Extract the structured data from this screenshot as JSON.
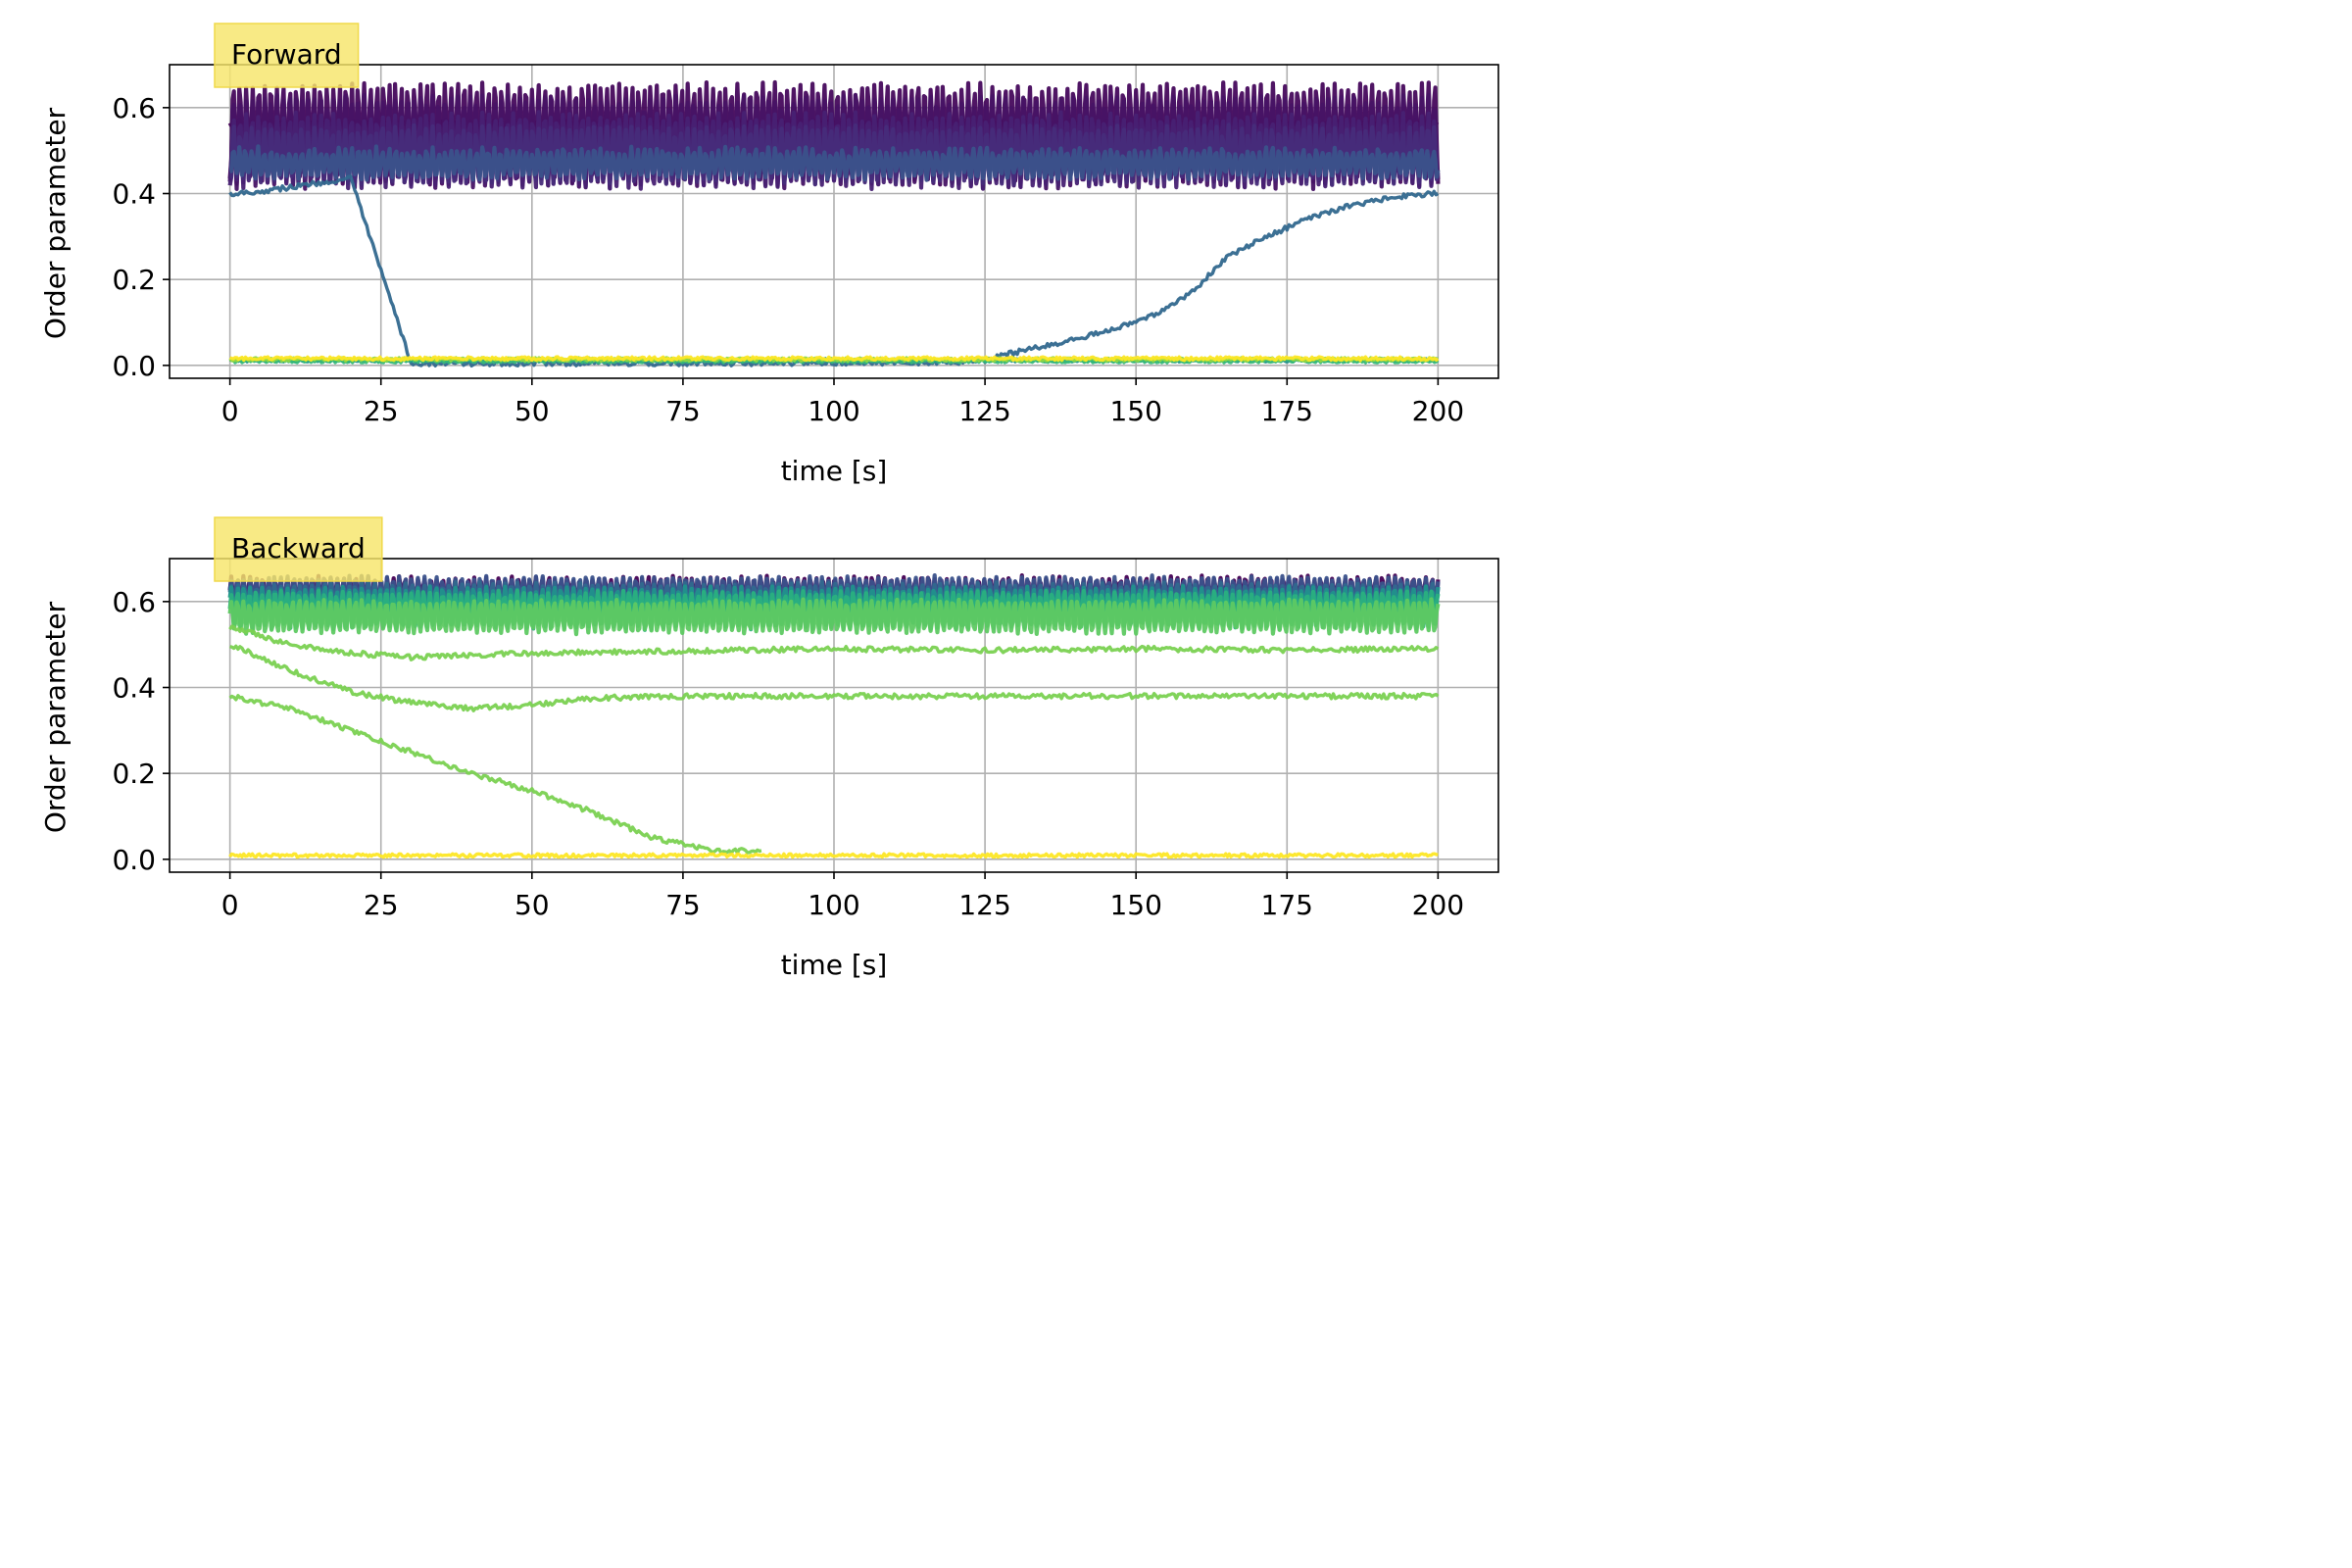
{
  "chart_data": [
    {
      "type": "line",
      "panel_label": "Forward",
      "xlabel": "time [s]",
      "ylabel": "Order parameter",
      "xlim": [
        -10,
        210
      ],
      "ylim": [
        -0.03,
        0.7
      ],
      "xticks": [
        0,
        25,
        50,
        75,
        100,
        125,
        150,
        175,
        200
      ],
      "xtick_labels": [
        "0",
        "25",
        "50",
        "75",
        "100",
        "125",
        "150",
        "175",
        "200"
      ],
      "yticks": [
        0.0,
        0.2,
        0.4,
        0.6
      ],
      "ytick_labels": [
        "0.0",
        "0.2",
        "0.4",
        "0.6"
      ],
      "grid": true,
      "colormap": "viridis",
      "series": [
        {
          "color": "#440154",
          "kind": "oscillating",
          "mean": 0.565,
          "amp": 0.005,
          "noise": 0.003,
          "x": [
            0,
            200
          ]
        },
        {
          "color": "#46085c",
          "kind": "oscillating",
          "mean": 0.54,
          "amp": 0.11,
          "noise": 0.01,
          "x": [
            0,
            200
          ]
        },
        {
          "color": "#471365",
          "kind": "oscillating",
          "mean": 0.52,
          "amp": 0.1,
          "noise": 0.01,
          "x": [
            0,
            200
          ]
        },
        {
          "color": "#482173",
          "kind": "oscillating",
          "mean": 0.5,
          "amp": 0.08,
          "noise": 0.01,
          "x": [
            0,
            200
          ]
        },
        {
          "color": "#472c7a",
          "kind": "oscillating",
          "mean": 0.49,
          "amp": 0.06,
          "noise": 0.01,
          "x": [
            0,
            200
          ]
        },
        {
          "color": "#3b528b",
          "kind": "oscillating",
          "mean": 0.47,
          "amp": 0.03,
          "noise": 0.01,
          "x": [
            0,
            200
          ]
        },
        {
          "color": "#31688e",
          "kind": "points",
          "x": [
            0,
            5,
            10,
            15,
            20,
            30,
            40,
            60,
            80,
            100,
            120,
            125,
            130,
            140,
            150,
            155,
            160,
            165,
            170,
            175,
            180,
            185,
            190,
            195,
            200
          ],
          "y": [
            0.4,
            0.405,
            0.415,
            0.425,
            0.435,
            0.005,
            0.005,
            0.005,
            0.005,
            0.006,
            0.008,
            0.012,
            0.03,
            0.06,
            0.1,
            0.13,
            0.18,
            0.25,
            0.29,
            0.32,
            0.35,
            0.37,
            0.385,
            0.395,
            0.4
          ]
        },
        {
          "color": "#21918c",
          "kind": "flat",
          "mean": 0.012,
          "noise": 0.004,
          "x": [
            0,
            200
          ]
        },
        {
          "color": "#35b779",
          "kind": "flat",
          "mean": 0.01,
          "noise": 0.004,
          "x": [
            0,
            200
          ]
        },
        {
          "color": "#90d743",
          "kind": "flat",
          "mean": 0.014,
          "noise": 0.004,
          "x": [
            0,
            200
          ]
        },
        {
          "color": "#fde725",
          "kind": "flat",
          "mean": 0.016,
          "noise": 0.004,
          "x": [
            0,
            200
          ]
        }
      ]
    },
    {
      "type": "line",
      "panel_label": "Backward",
      "xlabel": "time [s]",
      "ylabel": "Order parameter",
      "xlim": [
        -10,
        210
      ],
      "ylim": [
        -0.03,
        0.7
      ],
      "xticks": [
        0,
        25,
        50,
        75,
        100,
        125,
        150,
        175,
        200
      ],
      "xtick_labels": [
        "0",
        "25",
        "50",
        "75",
        "100",
        "125",
        "150",
        "175",
        "200"
      ],
      "yticks": [
        0.0,
        0.2,
        0.4,
        0.6
      ],
      "ytick_labels": [
        "0.0",
        "0.2",
        "0.4",
        "0.6"
      ],
      "grid": true,
      "colormap": "viridis",
      "series": [
        {
          "color": "#440154",
          "kind": "oscillating",
          "mean": 0.62,
          "amp": 0.035,
          "noise": 0.006,
          "x": [
            0,
            200
          ]
        },
        {
          "color": "#3b528b",
          "kind": "oscillating",
          "mean": 0.615,
          "amp": 0.04,
          "noise": 0.006,
          "x": [
            0,
            200
          ]
        },
        {
          "color": "#31688e",
          "kind": "oscillating",
          "mean": 0.6,
          "amp": 0.04,
          "noise": 0.006,
          "x": [
            0,
            200
          ]
        },
        {
          "color": "#21918c",
          "kind": "oscillating",
          "mean": 0.59,
          "amp": 0.04,
          "noise": 0.006,
          "x": [
            0,
            200
          ]
        },
        {
          "color": "#2ab07f",
          "kind": "oscillating",
          "mean": 0.58,
          "amp": 0.04,
          "noise": 0.006,
          "x": [
            0,
            200
          ]
        },
        {
          "color": "#5ec962",
          "kind": "oscillating",
          "mean": 0.565,
          "amp": 0.035,
          "noise": 0.006,
          "x": [
            0,
            200
          ]
        },
        {
          "color": "#7ad151",
          "kind": "points",
          "x": [
            0,
            10,
            20,
            25,
            30,
            50,
            75,
            100,
            125,
            150,
            175,
            200
          ],
          "y": [
            0.54,
            0.5,
            0.48,
            0.475,
            0.47,
            0.48,
            0.485,
            0.49,
            0.487,
            0.49,
            0.487,
            0.49
          ]
        },
        {
          "color": "#7ad151",
          "kind": "points",
          "x": [
            0,
            10,
            20,
            30,
            40,
            50,
            60,
            75,
            100,
            125,
            150,
            175,
            200
          ],
          "y": [
            0.5,
            0.44,
            0.39,
            0.365,
            0.35,
            0.36,
            0.375,
            0.38,
            0.38,
            0.38,
            0.38,
            0.38,
            0.38
          ]
        },
        {
          "color": "#7ad151",
          "kind": "points",
          "x": [
            0,
            10,
            20,
            30,
            40,
            50,
            60,
            70,
            80,
            88
          ],
          "y": [
            0.38,
            0.35,
            0.3,
            0.25,
            0.2,
            0.16,
            0.11,
            0.05,
            0.02,
            0.02
          ]
        },
        {
          "color": "#fde725",
          "kind": "flat",
          "mean": 0.009,
          "noise": 0.004,
          "x": [
            0,
            200
          ]
        }
      ]
    }
  ]
}
